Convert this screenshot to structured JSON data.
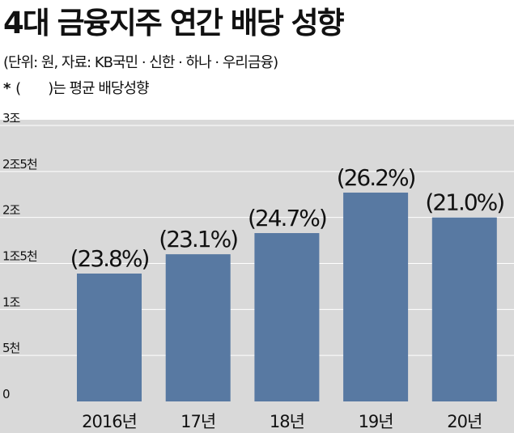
{
  "chart_data": {
    "type": "bar",
    "title": "4대 금융지주 연간 배당 성향",
    "subtitle": "(단위: 원, 자료: KB국민 · 신한 · 하나 · 우리금융)",
    "note": {
      "star": "*",
      "open": "(",
      "close": ")",
      "text": "는  평균 배당성향"
    },
    "categories": [
      "2016년",
      "17년",
      "18년",
      "19년",
      "20년"
    ],
    "values": [
      13900,
      16000,
      18300,
      22700,
      20000
    ],
    "bar_labels": [
      "(23.8%)",
      "(23.1%)",
      "(24.7%)",
      "(26.2%)",
      "(21.0%)"
    ],
    "y_ticks": [
      {
        "value": 0,
        "label": "0"
      },
      {
        "value": 5000,
        "label": "5천"
      },
      {
        "value": 10000,
        "label": "1조"
      },
      {
        "value": 15000,
        "label": "1조5천"
      },
      {
        "value": 20000,
        "label": "2조"
      },
      {
        "value": 25000,
        "label": "2조5천"
      },
      {
        "value": 30000,
        "label": "3조"
      }
    ],
    "ylim": [
      0,
      30000
    ],
    "grid": true,
    "colors": {
      "bar": "#5879a2",
      "plot_background": "#d9d9d9",
      "grid": "#ffffff"
    }
  }
}
